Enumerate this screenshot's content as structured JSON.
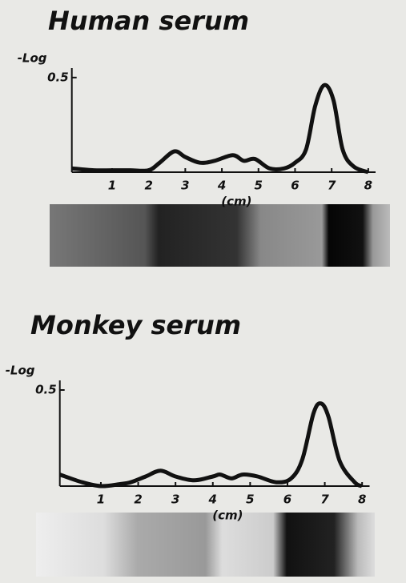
{
  "chart_data": [
    {
      "type": "line",
      "title": "Human serum",
      "y_label": "-Log",
      "x_label": "(cm)",
      "x": [
        -0.1,
        0.5,
        1,
        1.5,
        2,
        2.3,
        2.7,
        3.0,
        3.4,
        3.8,
        4.3,
        4.6,
        4.9,
        5.3,
        5.7,
        6.0,
        6.3,
        6.55,
        6.8,
        7.05,
        7.3,
        7.6,
        8.0
      ],
      "values": [
        0.02,
        0.01,
        0.01,
        0.01,
        0.01,
        0.05,
        0.11,
        0.08,
        0.05,
        0.06,
        0.09,
        0.06,
        0.07,
        0.02,
        0.02,
        0.05,
        0.12,
        0.35,
        0.46,
        0.38,
        0.12,
        0.03,
        0.0
      ],
      "color": "#111111",
      "xlim": [
        -0.1,
        8.2
      ],
      "ylim": [
        0,
        0.55
      ],
      "xticks": [
        1,
        2,
        3,
        4,
        5,
        6,
        7,
        8
      ],
      "yticks": [
        0.5
      ]
    },
    {
      "type": "line",
      "title": "Monkey serum",
      "y_label": "-Log",
      "x_label": "(cm)",
      "x": [
        -0.1,
        0.5,
        1,
        1.5,
        1.8,
        2.2,
        2.6,
        3.0,
        3.5,
        4.0,
        4.2,
        4.5,
        4.8,
        5.2,
        5.7,
        6.1,
        6.4,
        6.7,
        6.9,
        7.1,
        7.4,
        7.8,
        8.0
      ],
      "values": [
        0.06,
        0.02,
        0.0,
        0.01,
        0.02,
        0.05,
        0.08,
        0.05,
        0.03,
        0.05,
        0.06,
        0.04,
        0.06,
        0.05,
        0.02,
        0.04,
        0.14,
        0.38,
        0.43,
        0.36,
        0.13,
        0.02,
        0.0
      ],
      "color": "#111111",
      "xlim": [
        -0.1,
        8.2
      ],
      "ylim": [
        0,
        0.55
      ],
      "xticks": [
        1,
        2,
        3,
        4,
        5,
        6,
        7,
        8
      ],
      "yticks": [
        0.5
      ]
    }
  ]
}
